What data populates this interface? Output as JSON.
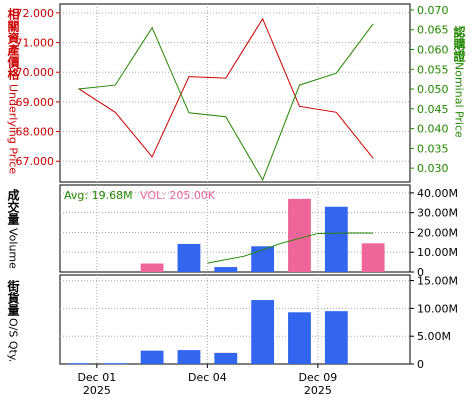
{
  "chart_data": [
    {
      "type": "line",
      "panel": "price",
      "left_axis": {
        "label_cn": "相關資產價格",
        "label_en": "Underlying Price",
        "ylim": [
          66.3,
          72.3
        ],
        "ticks": [
          "72.000",
          "71.000",
          "70.000",
          "69.000",
          "68.000",
          "67.000"
        ],
        "tick_values": [
          72,
          71,
          70,
          69,
          68,
          67
        ]
      },
      "right_axis": {
        "label_cn": "認購證",
        "label_en": "Nominal Price",
        "ylim": [
          0.0265,
          0.0715
        ],
        "ticks": [
          "0.070",
          "0.065",
          "0.060",
          "0.055",
          "0.050",
          "0.045",
          "0.040",
          "0.035",
          "0.030"
        ],
        "tick_values": [
          0.07,
          0.065,
          0.06,
          0.055,
          0.05,
          0.045,
          0.04,
          0.035,
          0.03
        ]
      },
      "x": [
        1,
        2,
        3,
        4,
        5,
        6,
        7,
        8,
        9
      ],
      "series": [
        {
          "axis": "left",
          "color": "#cc0000",
          "values": [
            69.45,
            68.65,
            67.15,
            69.85,
            69.8,
            71.8,
            68.85,
            68.65,
            67.1
          ]
        },
        {
          "axis": "right",
          "color": "#228800",
          "values": [
            0.05,
            0.051,
            0.0655,
            0.044,
            0.043,
            0.027,
            0.051,
            0.054,
            0.0665
          ]
        }
      ],
      "grid": true
    },
    {
      "type": "bar",
      "panel": "volume",
      "axis_label_cn": "成交量",
      "axis_label_en": "Volume",
      "avg_text": "Avg: 19.68M",
      "vol_text": "VOL: 205.00K",
      "ylim": [
        0,
        44
      ],
      "ticks": [
        "40.00M",
        "30.00M",
        "20.00M",
        "10.00M",
        "0"
      ],
      "tick_values": [
        40,
        30,
        20,
        10,
        0
      ],
      "x": [
        1,
        2,
        3,
        4,
        5,
        6,
        7,
        8,
        9
      ],
      "values": [
        0,
        0,
        4.3,
        14.2,
        2.5,
        13,
        37,
        33,
        14.5
      ],
      "colors": [
        "#3366ee",
        "#3366ee",
        "#ee6699",
        "#3366ee",
        "#3366ee",
        "#3366ee",
        "#ee6699",
        "#3366ee",
        "#ee6699"
      ],
      "avg_line": {
        "color": "#228800",
        "points": [
          [
            4.5,
            4.5
          ],
          [
            5.5,
            8
          ],
          [
            6.5,
            14.5
          ],
          [
            7.5,
            19.5
          ],
          [
            8.5,
            19.7
          ],
          [
            9.0,
            19.68
          ]
        ]
      },
      "grid": true
    },
    {
      "type": "bar",
      "panel": "os_qty",
      "axis_label_cn": "街貨量",
      "axis_label_en": "O/S Qty.",
      "ylim": [
        0,
        16
      ],
      "ticks": [
        "15.00M",
        "10.00M",
        "5.00M",
        "0"
      ],
      "tick_values": [
        15,
        10,
        5,
        0
      ],
      "x": [
        1,
        2,
        3,
        4,
        5,
        6,
        7,
        8,
        9
      ],
      "values": [
        0.15,
        0.15,
        2.4,
        2.5,
        2.0,
        11.5,
        9.3,
        9.5,
        0
      ],
      "color": "#3366ee",
      "grid": true
    }
  ],
  "x_axis": {
    "ticks": [
      {
        "x": 1.5,
        "line1": "Dec 01",
        "line2": "2025"
      },
      {
        "x": 4.5,
        "line1": "Dec 04",
        "line2": ""
      },
      {
        "x": 7.5,
        "line1": "Dec 09",
        "line2": "2025"
      }
    ],
    "xlim": [
      0.5,
      10.0
    ]
  },
  "colors": {
    "left_axis": "#cc0000",
    "right_axis": "#228800",
    "axis_text": "#000000",
    "avg_text": "#228800",
    "vol_text": "#ee6699",
    "panel_bg": "#ffffff"
  }
}
